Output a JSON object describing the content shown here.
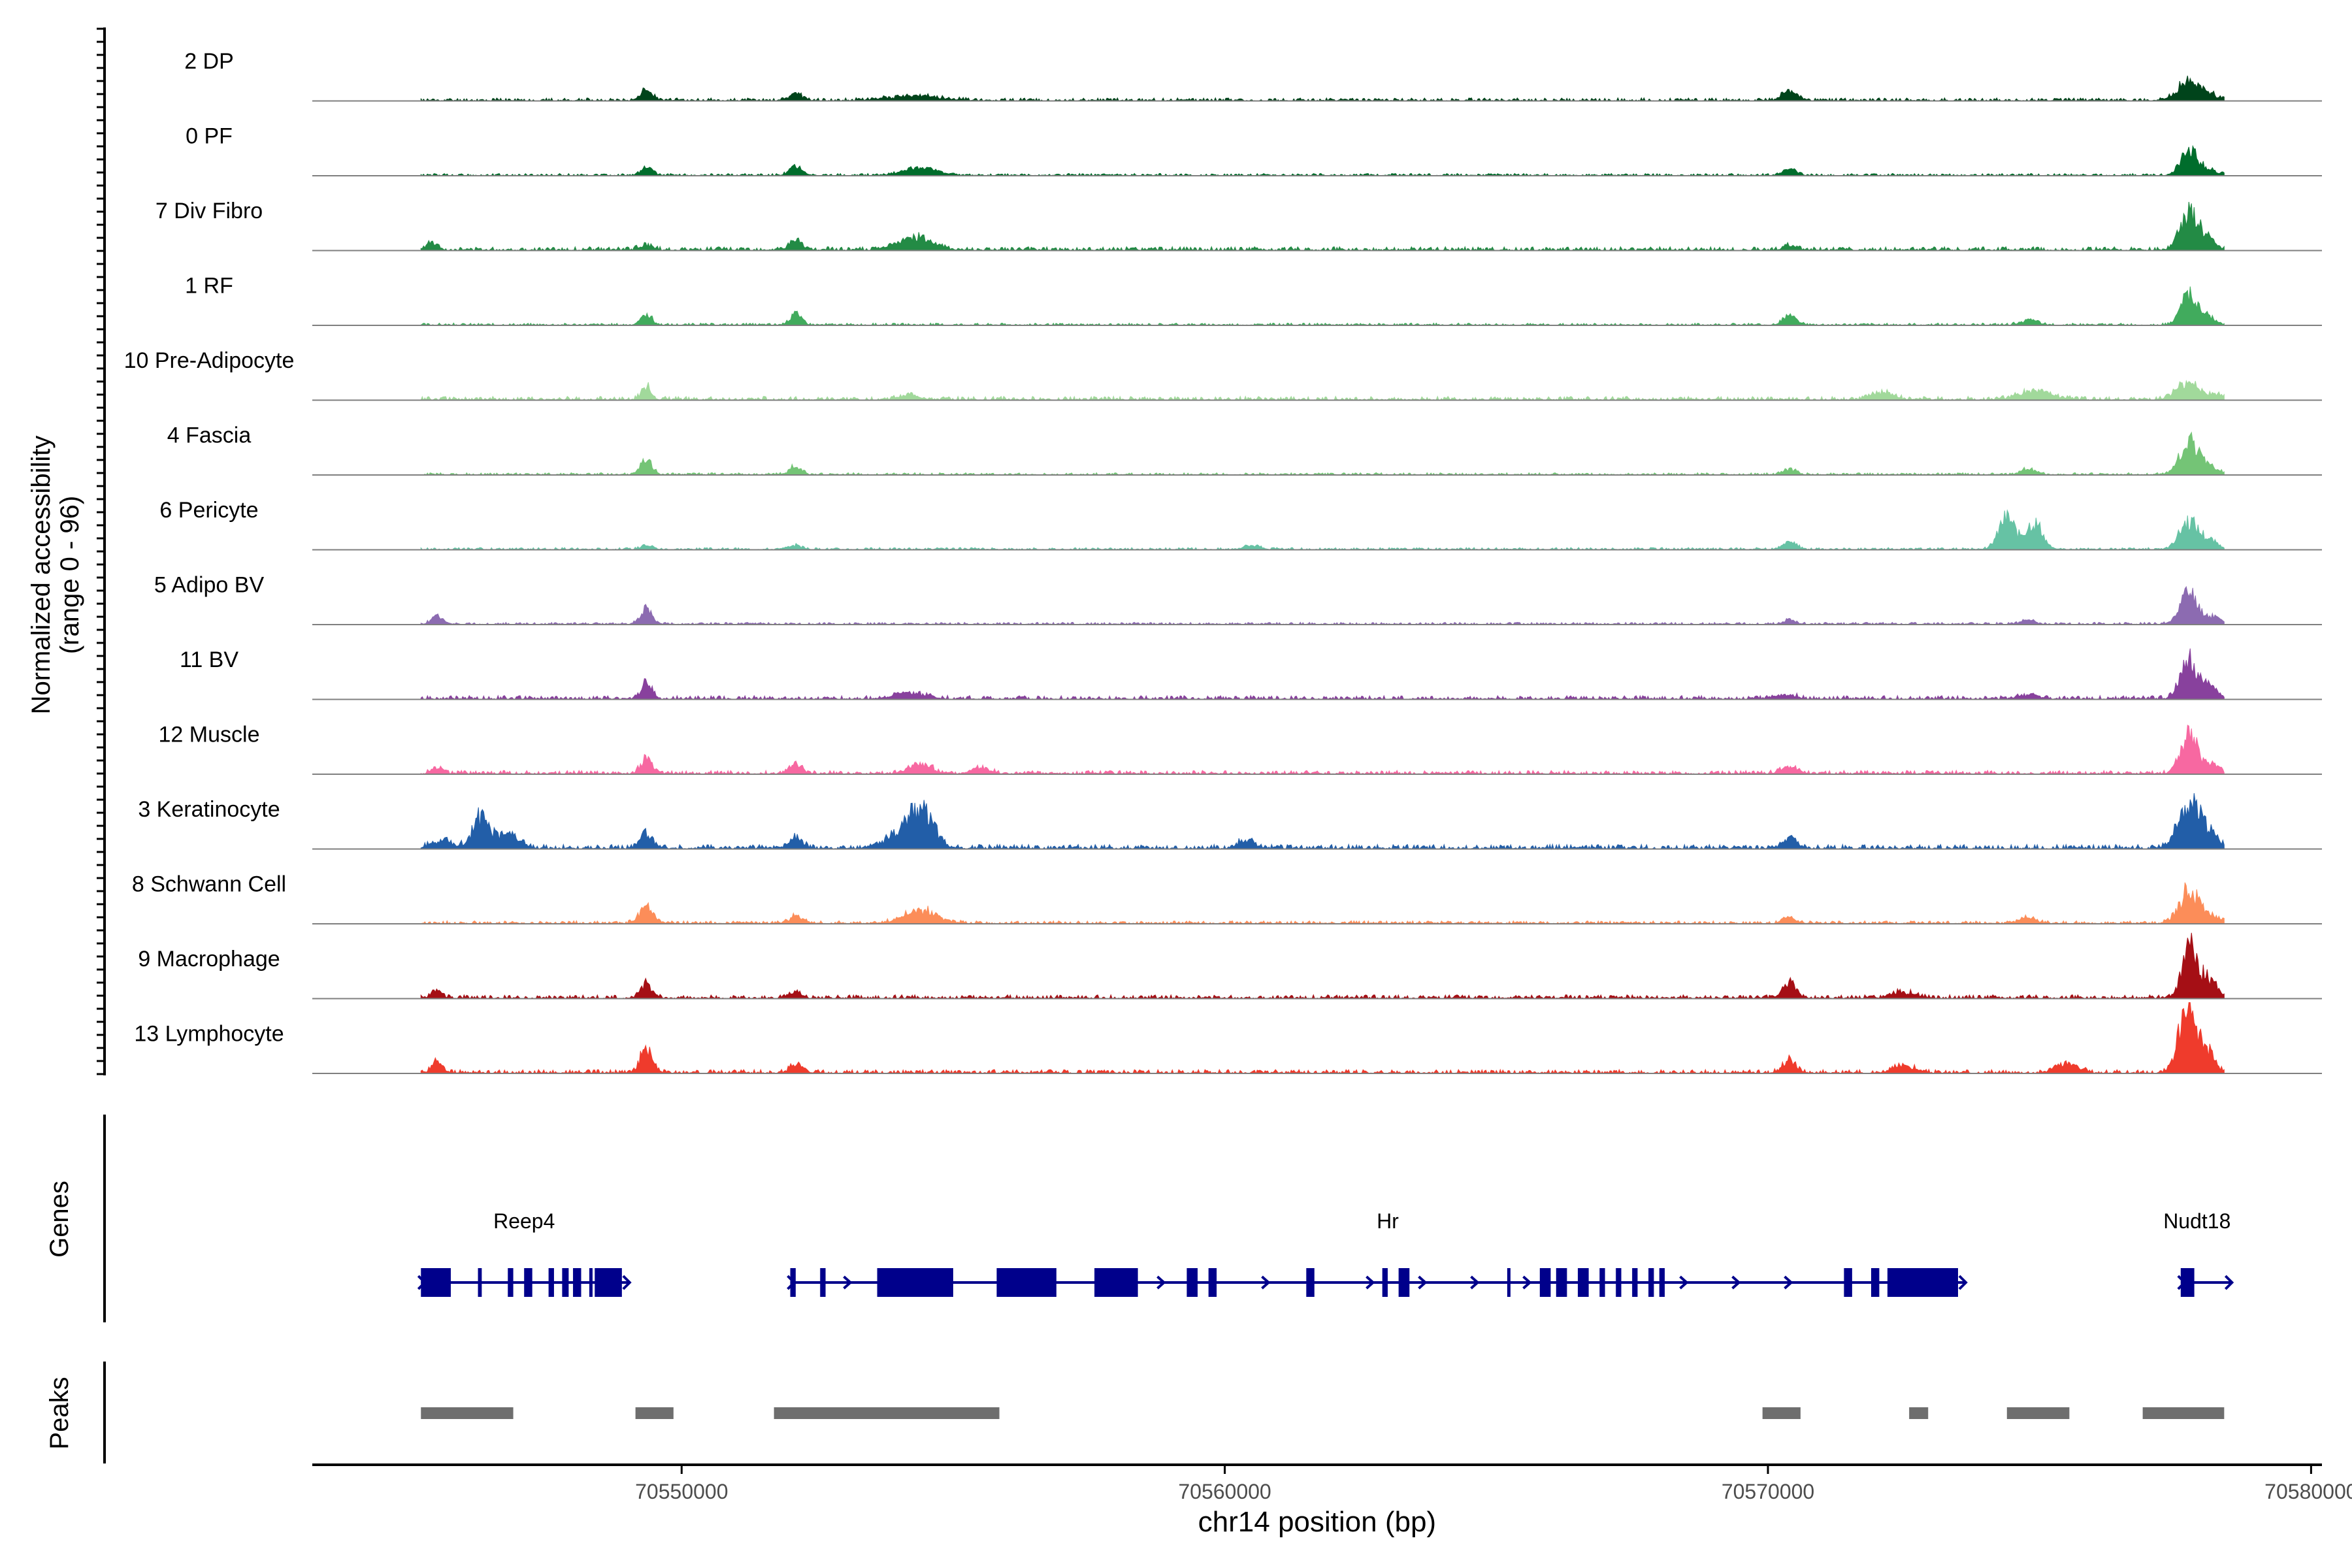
{
  "chart_data": {
    "type": "area",
    "title": "",
    "ylabel_line1": "Normalized accessibility",
    "ylabel_line2": "(range 0 - 96)",
    "xlabel": "chr14 position (bp)",
    "xlim": [
      70543200,
      70580200
    ],
    "data_start": 70545200,
    "data_end": 70578400,
    "ylim": [
      0,
      96
    ],
    "xticks": [
      70550000,
      70560000,
      70570000,
      70580000
    ],
    "xtick_labels": [
      "70550000",
      "70560000",
      "70570000",
      "70580000"
    ],
    "tracks": [
      {
        "name": "2 DP",
        "color": "#00441b",
        "baseline": 2,
        "seed": 11,
        "peaks": [
          [
            70549350,
            14,
            110
          ],
          [
            70552100,
            10,
            120
          ],
          [
            70554300,
            6,
            500
          ],
          [
            70570400,
            13,
            130
          ],
          [
            70577700,
            24,
            180
          ],
          [
            70578050,
            10,
            200
          ]
        ]
      },
      {
        "name": "0 PF",
        "color": "#006d2c",
        "baseline": 1.5,
        "seed": 12,
        "peaks": [
          [
            70549350,
            12,
            100
          ],
          [
            70552100,
            14,
            110
          ],
          [
            70554400,
            10,
            300
          ],
          [
            70570400,
            10,
            120
          ],
          [
            70577750,
            33,
            150
          ],
          [
            70578050,
            8,
            200
          ]
        ]
      },
      {
        "name": "7 Div Fibro",
        "color": "#238b45",
        "baseline": 2.5,
        "seed": 13,
        "peaks": [
          [
            70545400,
            12,
            90
          ],
          [
            70549350,
            8,
            110
          ],
          [
            70552100,
            14,
            110
          ],
          [
            70554300,
            18,
            300
          ],
          [
            70570400,
            6,
            120
          ],
          [
            70577750,
            52,
            160
          ],
          [
            70578100,
            14,
            150
          ]
        ]
      },
      {
        "name": "1 RF",
        "color": "#41ab5d",
        "baseline": 1.5,
        "seed": 14,
        "peaks": [
          [
            70549350,
            14,
            100
          ],
          [
            70552100,
            16,
            110
          ],
          [
            70570400,
            16,
            120
          ],
          [
            70574800,
            7,
            150
          ],
          [
            70577750,
            40,
            150
          ],
          [
            70578100,
            10,
            150
          ]
        ]
      },
      {
        "name": "10 Pre-Adipocyte",
        "color": "#a1d99b",
        "baseline": 2.5,
        "seed": 15,
        "peaks": [
          [
            70549350,
            18,
            90
          ],
          [
            70554200,
            6,
            200
          ],
          [
            70572100,
            10,
            200
          ],
          [
            70574900,
            12,
            300
          ],
          [
            70577750,
            24,
            200
          ],
          [
            70578300,
            8,
            150
          ]
        ]
      },
      {
        "name": "4 Fascia",
        "color": "#74c476",
        "baseline": 1.5,
        "seed": 16,
        "peaks": [
          [
            70549350,
            22,
            100
          ],
          [
            70552100,
            11,
            110
          ],
          [
            70570400,
            8,
            110
          ],
          [
            70574800,
            8,
            130
          ],
          [
            70577750,
            44,
            170
          ],
          [
            70578100,
            10,
            200
          ]
        ]
      },
      {
        "name": "6 Pericyte",
        "color": "#66c2a4",
        "baseline": 1.5,
        "seed": 17,
        "peaks": [
          [
            70549350,
            8,
            100
          ],
          [
            70552100,
            6,
            110
          ],
          [
            70560500,
            6,
            150
          ],
          [
            70570400,
            10,
            120
          ],
          [
            70574400,
            44,
            150
          ],
          [
            70574900,
            38,
            150
          ],
          [
            70577750,
            40,
            170
          ],
          [
            70578150,
            12,
            150
          ]
        ]
      },
      {
        "name": "5 Adipo BV",
        "color": "#8c6bb1",
        "baseline": 1.5,
        "seed": 18,
        "peaks": [
          [
            70545500,
            12,
            100
          ],
          [
            70549350,
            20,
            110
          ],
          [
            70570400,
            5,
            120
          ],
          [
            70574800,
            6,
            120
          ],
          [
            70577750,
            44,
            160
          ],
          [
            70578200,
            10,
            150
          ]
        ]
      },
      {
        "name": "11 BV",
        "color": "#88419d",
        "baseline": 2.5,
        "seed": 19,
        "peaks": [
          [
            70549350,
            22,
            100
          ],
          [
            70554200,
            8,
            300
          ],
          [
            70570300,
            6,
            200
          ],
          [
            70574800,
            6,
            200
          ],
          [
            70577750,
            55,
            150
          ],
          [
            70578100,
            18,
            150
          ]
        ]
      },
      {
        "name": "12 Muscle",
        "color": "#f768a1",
        "baseline": 2.5,
        "seed": 20,
        "peaks": [
          [
            70545500,
            10,
            100
          ],
          [
            70549350,
            22,
            100
          ],
          [
            70552100,
            16,
            110
          ],
          [
            70554400,
            14,
            200
          ],
          [
            70555500,
            10,
            150
          ],
          [
            70570400,
            10,
            150
          ],
          [
            70577750,
            55,
            150
          ],
          [
            70578150,
            12,
            150
          ]
        ]
      },
      {
        "name": "3 Keratinocyte",
        "color": "#225ea8",
        "baseline": 3,
        "seed": 21,
        "peaks": [
          [
            70545600,
            10,
            200
          ],
          [
            70546300,
            42,
            160
          ],
          [
            70546800,
            20,
            200
          ],
          [
            70549350,
            22,
            110
          ],
          [
            70552100,
            16,
            110
          ],
          [
            70554400,
            52,
            230
          ],
          [
            70554000,
            16,
            300
          ],
          [
            70560400,
            12,
            150
          ],
          [
            70570400,
            14,
            120
          ],
          [
            70577750,
            56,
            200
          ],
          [
            70578100,
            18,
            200
          ]
        ]
      },
      {
        "name": "8 Schwann Cell",
        "color": "#fc8d59",
        "baseline": 2,
        "seed": 22,
        "peaks": [
          [
            70549350,
            22,
            130
          ],
          [
            70552100,
            10,
            130
          ],
          [
            70554400,
            18,
            300
          ],
          [
            70570400,
            8,
            120
          ],
          [
            70574800,
            8,
            130
          ],
          [
            70577750,
            44,
            180
          ],
          [
            70578100,
            10,
            200
          ]
        ]
      },
      {
        "name": "9 Macrophage",
        "color": "#a50f15",
        "baseline": 2.5,
        "seed": 23,
        "peaks": [
          [
            70545500,
            10,
            100
          ],
          [
            70549350,
            22,
            100
          ],
          [
            70552100,
            8,
            110
          ],
          [
            70570400,
            22,
            120
          ],
          [
            70572500,
            8,
            200
          ],
          [
            70577750,
            70,
            130
          ],
          [
            70578100,
            28,
            150
          ]
        ]
      },
      {
        "name": "13 Lymphocyte",
        "color": "#ef3b2c",
        "baseline": 2.5,
        "seed": 24,
        "peaks": [
          [
            70545500,
            16,
            100
          ],
          [
            70549350,
            36,
            110
          ],
          [
            70552100,
            12,
            110
          ],
          [
            70570400,
            18,
            120
          ],
          [
            70572500,
            10,
            200
          ],
          [
            70575500,
            14,
            200
          ],
          [
            70577700,
            80,
            150
          ],
          [
            70578050,
            36,
            150
          ]
        ]
      }
    ],
    "genes_label": "Genes",
    "peaks_label": "Peaks",
    "genes": [
      {
        "name": "Reep4",
        "strand": "+",
        "start": 70545200,
        "end": 70548900,
        "label_pos": 70547100,
        "exons": [
          [
            70545200,
            70545750
          ],
          [
            70546250,
            70546320
          ],
          [
            70546800,
            70546900
          ],
          [
            70547100,
            70547250
          ],
          [
            70547550,
            70547650
          ],
          [
            70547800,
            70547920
          ],
          [
            70548000,
            70548150
          ],
          [
            70548300,
            70548350
          ],
          [
            70548400,
            70548900
          ]
        ]
      },
      {
        "name": "Hr",
        "strand": "+",
        "start": 70552000,
        "end": 70573500,
        "label_pos": 70563000,
        "exons": [
          [
            70552000,
            70552100
          ],
          [
            70552550,
            70552650
          ],
          [
            70553600,
            70555000
          ],
          [
            70555800,
            70556900
          ],
          [
            70557600,
            70558400
          ],
          [
            70559300,
            70559500
          ],
          [
            70559700,
            70559850
          ],
          [
            70561500,
            70561650
          ],
          [
            70562900,
            70563000
          ],
          [
            70563200,
            70563400
          ],
          [
            70565200,
            70565250
          ],
          [
            70565800,
            70566000
          ],
          [
            70566100,
            70566300
          ],
          [
            70566500,
            70566700
          ],
          [
            70566900,
            70567000
          ],
          [
            70567200,
            70567300
          ],
          [
            70567500,
            70567600
          ],
          [
            70567800,
            70567900
          ],
          [
            70568000,
            70568100
          ],
          [
            70571400,
            70571550
          ],
          [
            70571900,
            70572050
          ],
          [
            70572200,
            70573500
          ]
        ]
      },
      {
        "name": "Nudt18",
        "strand": "+",
        "start": 70577600,
        "end": 70578400,
        "label_pos": 70577900,
        "exons": [
          [
            70577600,
            70577850
          ]
        ]
      }
    ],
    "peak_regions": [
      [
        70545200,
        70546900
      ],
      [
        70549150,
        70549850
      ],
      [
        70551700,
        70555850
      ],
      [
        70569900,
        70570600
      ],
      [
        70572600,
        70572950
      ],
      [
        70574400,
        70575550
      ],
      [
        70576900,
        70578400
      ]
    ]
  }
}
